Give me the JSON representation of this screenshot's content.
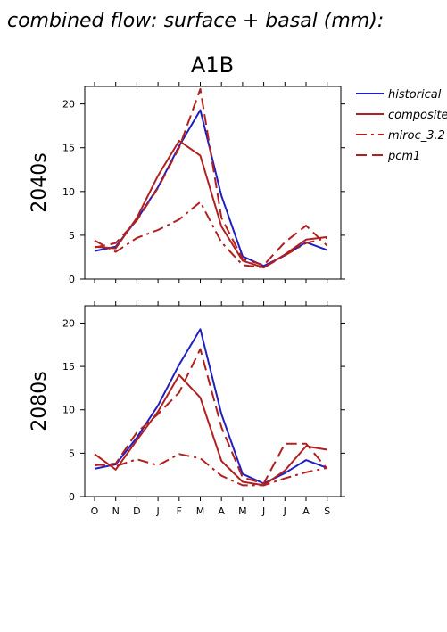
{
  "figure": {
    "suptitle": "combined flow: surface + basal (mm):",
    "title": "A1B"
  },
  "legend": [
    {
      "name": "historical",
      "color": "#2020c0",
      "dash": "solid"
    },
    {
      "name": "composite",
      "color": "#b02020",
      "dash": "solid"
    },
    {
      "name": "miroc_3.2",
      "color": "#b02020",
      "dash": "dashdot"
    },
    {
      "name": "pcm1",
      "color": "#b02020",
      "dash": "dashed"
    }
  ],
  "chart_data": [
    {
      "type": "line",
      "title": "",
      "row_label": "2040s",
      "categories": [
        "O",
        "N",
        "D",
        "J",
        "F",
        "M",
        "A",
        "M",
        "J",
        "J",
        "A",
        "S"
      ],
      "ylim": [
        0,
        22
      ],
      "yticks": [
        0,
        5,
        10,
        15,
        20
      ],
      "grid": false,
      "series": [
        {
          "name": "historical",
          "values": [
            3.2,
            3.7,
            6.8,
            10.5,
            15.2,
            19.3,
            9.5,
            2.6,
            1.5,
            2.7,
            4.2,
            3.3
          ]
        },
        {
          "name": "composite",
          "values": [
            3.7,
            3.5,
            7.0,
            11.8,
            15.8,
            14.1,
            6.0,
            2.1,
            1.3,
            2.8,
            4.5,
            4.8
          ]
        },
        {
          "name": "miroc_3.2",
          "values": [
            4.4,
            3.1,
            4.7,
            5.6,
            6.8,
            8.8,
            4.2,
            1.6,
            1.3,
            2.7,
            4.1,
            4.7
          ]
        },
        {
          "name": "pcm1",
          "values": [
            3.6,
            4.1,
            6.7,
            10.4,
            15.0,
            21.7,
            7.0,
            2.3,
            1.6,
            4.2,
            6.1,
            3.8
          ]
        }
      ]
    },
    {
      "type": "line",
      "title": "",
      "row_label": "2080s",
      "categories": [
        "O",
        "N",
        "D",
        "J",
        "F",
        "M",
        "A",
        "M",
        "J",
        "J",
        "A",
        "S"
      ],
      "ylim": [
        0,
        22
      ],
      "yticks": [
        0,
        5,
        10,
        15,
        20
      ],
      "grid": false,
      "series": [
        {
          "name": "historical",
          "values": [
            3.2,
            3.7,
            6.8,
            10.5,
            15.2,
            19.3,
            9.5,
            2.6,
            1.5,
            2.7,
            4.2,
            3.3
          ]
        },
        {
          "name": "composite",
          "values": [
            4.9,
            3.1,
            6.5,
            9.8,
            14.0,
            11.4,
            4.1,
            1.7,
            1.3,
            3.0,
            5.8,
            5.4
          ]
        },
        {
          "name": "miroc_3.2",
          "values": [
            3.7,
            3.5,
            4.3,
            3.6,
            4.9,
            4.4,
            2.4,
            1.3,
            1.3,
            2.1,
            2.8,
            3.3
          ]
        },
        {
          "name": "pcm1",
          "values": [
            3.6,
            3.8,
            7.4,
            9.5,
            12.0,
            17.0,
            8.0,
            2.2,
            1.5,
            6.1,
            6.1,
            3.2
          ]
        }
      ]
    }
  ]
}
